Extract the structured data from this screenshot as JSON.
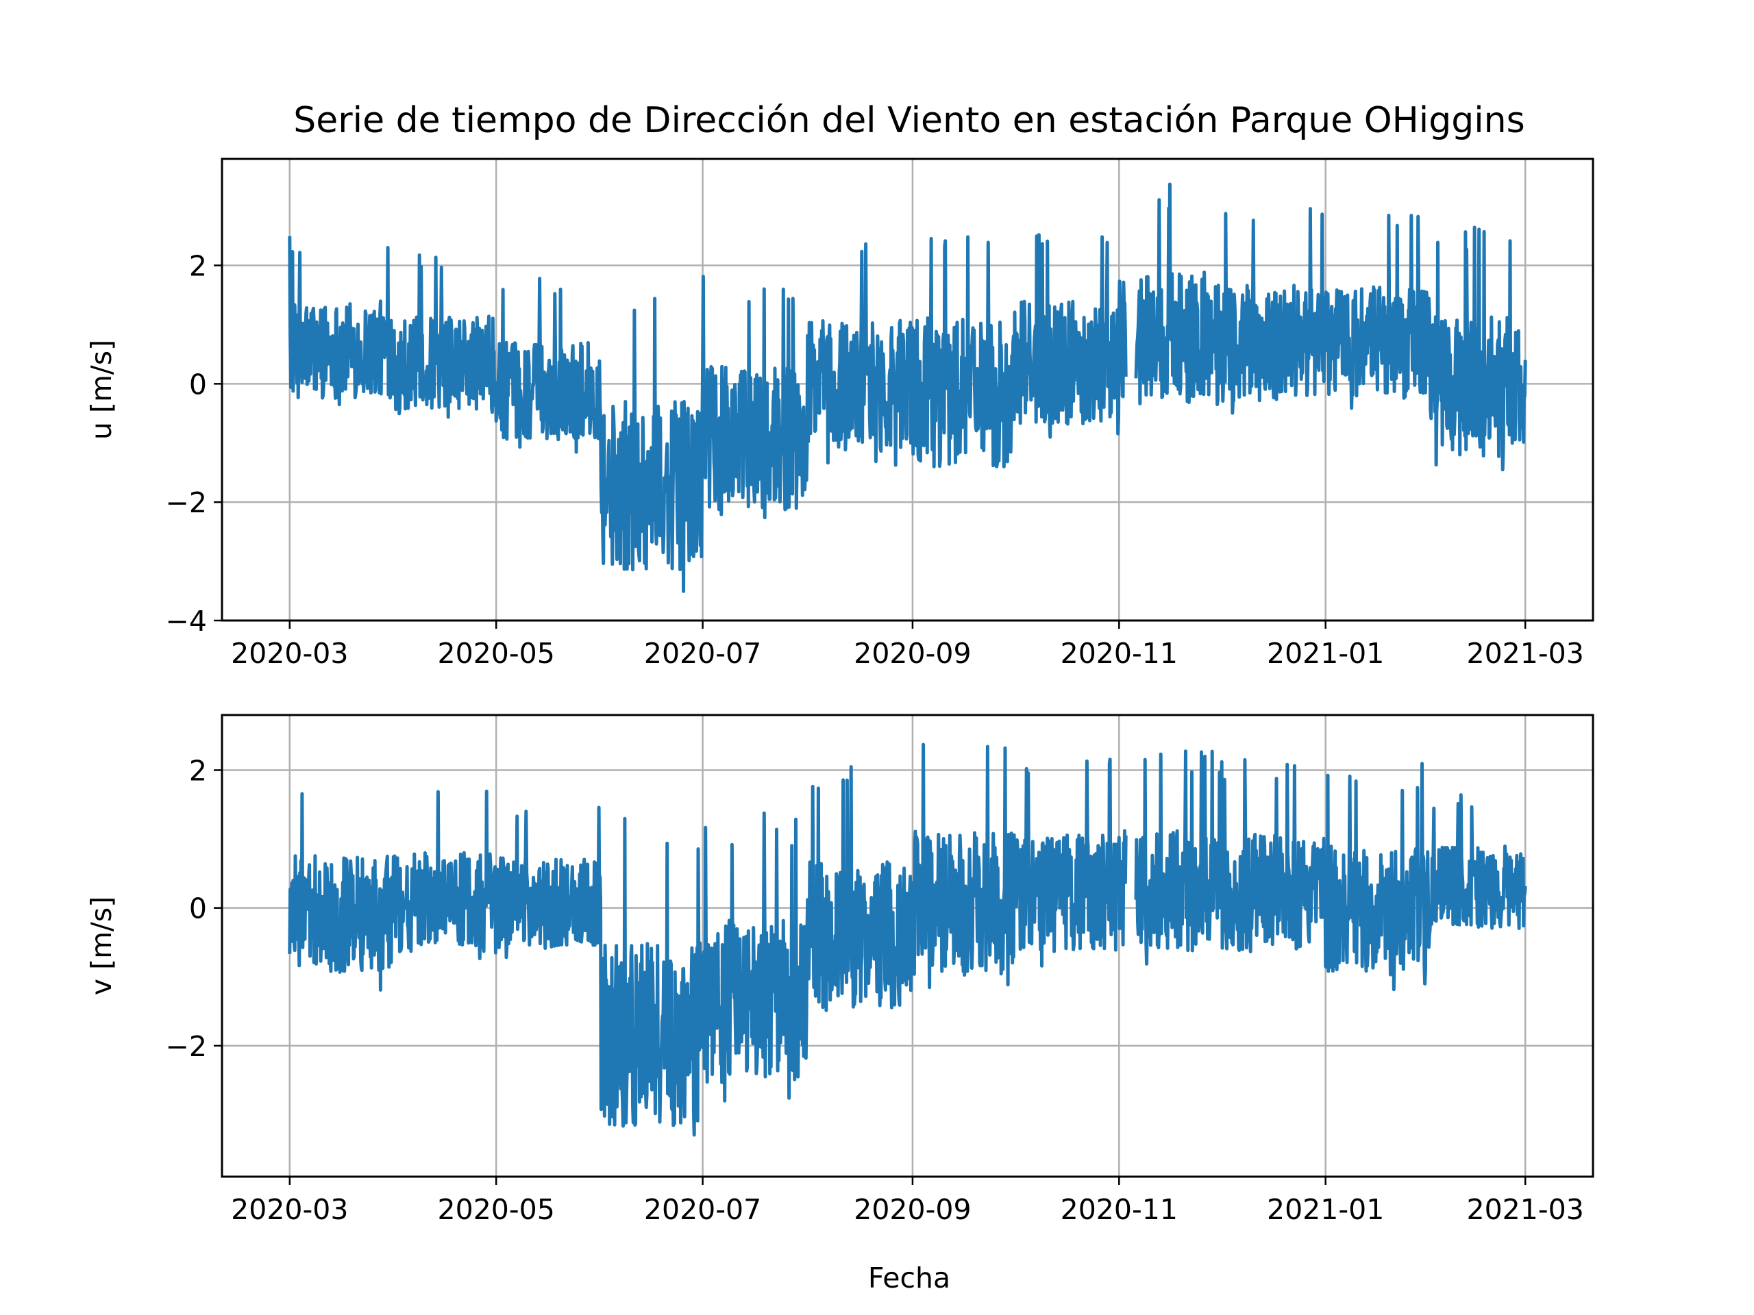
{
  "chart_data": {
    "title": "Serie de tiempo de Dirección del Viento en estación Parque OHiggins",
    "xlabel": "Fecha",
    "x_ticks": [
      "2020-03",
      "2020-05",
      "2020-07",
      "2020-09",
      "2020-11",
      "2021-01",
      "2021-03"
    ],
    "x_range": [
      "2020-02-10",
      "2021-03-21"
    ],
    "data_range": [
      "2020-03-01",
      "2021-03-01"
    ],
    "gaps": [
      [
        "2020-11-03",
        "2020-11-06"
      ]
    ],
    "color": "#1f77b4",
    "grid": true,
    "legend": "none",
    "panels": [
      {
        "type": "line",
        "ylabel": "u [m/s]",
        "ylim": [
          -4,
          3.8
        ],
        "y_ticks": [
          -4,
          -2,
          0,
          2
        ],
        "y_tick_labels": [
          "−4",
          "−2",
          "0",
          "2"
        ],
        "monthly_envelope": [
          {
            "month": "2020-03",
            "low": -0.5,
            "high": 2.5
          },
          {
            "month": "2020-04",
            "low": -0.7,
            "high": 2.2
          },
          {
            "month": "2020-05",
            "low": -1.2,
            "high": 1.8
          },
          {
            "month": "2020-06",
            "low": -3.6,
            "high": 1.6
          },
          {
            "month": "2020-07",
            "low": -2.5,
            "high": 1.9
          },
          {
            "month": "2020-08",
            "low": -1.5,
            "high": 2.6
          },
          {
            "month": "2020-09",
            "low": -1.8,
            "high": 2.8
          },
          {
            "month": "2020-10",
            "low": -1.0,
            "high": 2.8
          },
          {
            "month": "2020-11",
            "low": -0.7,
            "high": 3.4
          },
          {
            "month": "2020-12",
            "low": -0.6,
            "high": 3.0
          },
          {
            "month": "2021-01",
            "low": -0.5,
            "high": 2.9
          },
          {
            "month": "2021-02",
            "low": -1.6,
            "high": 2.7
          }
        ]
      },
      {
        "type": "line",
        "ylabel": "v [m/s]",
        "ylim": [
          -3.9,
          2.8
        ],
        "y_ticks": [
          -2,
          0,
          2
        ],
        "y_tick_labels": [
          "−2",
          "0",
          "2"
        ],
        "monthly_envelope": [
          {
            "month": "2020-03",
            "low": -1.2,
            "high": 1.9
          },
          {
            "month": "2020-04",
            "low": -0.9,
            "high": 1.8
          },
          {
            "month": "2020-05",
            "low": -0.8,
            "high": 1.6
          },
          {
            "month": "2020-06",
            "low": -3.6,
            "high": 1.3
          },
          {
            "month": "2020-07",
            "low": -2.9,
            "high": 1.4
          },
          {
            "month": "2020-08",
            "low": -1.8,
            "high": 2.1
          },
          {
            "month": "2020-09",
            "low": -1.3,
            "high": 2.5
          },
          {
            "month": "2020-10",
            "low": -0.9,
            "high": 2.2
          },
          {
            "month": "2020-11",
            "low": -0.9,
            "high": 2.3
          },
          {
            "month": "2020-12",
            "low": -0.9,
            "high": 2.2
          },
          {
            "month": "2021-01",
            "low": -1.2,
            "high": 2.1
          },
          {
            "month": "2021-02",
            "low": -0.5,
            "high": 1.7
          }
        ]
      }
    ]
  }
}
